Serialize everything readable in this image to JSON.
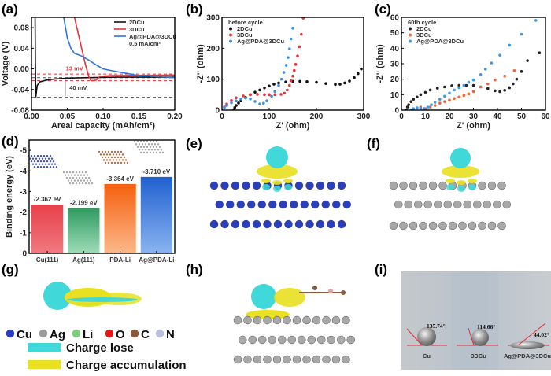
{
  "panel_labels": {
    "a": "(a)",
    "b": "(b)",
    "c": "(c)",
    "d": "(d)",
    "e": "(e)",
    "f": "(f)",
    "g": "(g)",
    "h": "(h)",
    "i": "(i)"
  },
  "chart_data": [
    {
      "id": "a",
      "type": "line",
      "xlabel": "Areal capacity (mAh/cm²)",
      "ylabel": "Voltage (V)",
      "xlim": [
        0,
        0.2
      ],
      "ylim": [
        -0.08,
        0.1
      ],
      "xticks": [
        "0.00",
        "0.05",
        "0.10",
        "0.15",
        "0.20"
      ],
      "xtick_values": [
        0,
        0.05,
        0.1,
        0.15,
        0.2
      ],
      "yticks": [
        "-0.08",
        "-0.04",
        "0.00",
        "0.04",
        "0.08"
      ],
      "ytick_values": [
        -0.08,
        -0.04,
        0,
        0.04,
        0.08
      ],
      "legend_note": "0.5 mA/cm²",
      "series": [
        {
          "name": "2DCu",
          "color": "#111111",
          "points": [
            [
              0.005,
              0.1
            ],
            [
              0.0055,
              0.0
            ],
            [
              0.006,
              -0.055
            ],
            [
              0.008,
              -0.032
            ],
            [
              0.012,
              -0.025
            ],
            [
              0.02,
              -0.022
            ],
            [
              0.03,
              -0.02
            ],
            [
              0.05,
              -0.018
            ],
            [
              0.08,
              -0.017
            ],
            [
              0.12,
              -0.016
            ],
            [
              0.2,
              -0.016
            ]
          ]
        },
        {
          "name": "3DCu",
          "color": "#e8333a",
          "points": [
            [
              0.06,
              0.1
            ],
            [
              0.065,
              0.07
            ],
            [
              0.07,
              0.04
            ],
            [
              0.075,
              0.01
            ],
            [
              0.08,
              -0.015
            ],
            [
              0.083,
              -0.023
            ],
            [
              0.09,
              -0.022
            ],
            [
              0.095,
              -0.015
            ],
            [
              0.11,
              -0.013
            ],
            [
              0.2,
              -0.012
            ]
          ]
        },
        {
          "name": "Ag@PDA@3DCu",
          "color": "#2f73d9",
          "points": [
            [
              0.045,
              0.1
            ],
            [
              0.05,
              0.06
            ],
            [
              0.055,
              0.04
            ],
            [
              0.06,
              0.03
            ],
            [
              0.07,
              0.025
            ],
            [
              0.08,
              0.017
            ],
            [
              0.09,
              0.008
            ],
            [
              0.1,
              0.0
            ],
            [
              0.11,
              -0.003
            ],
            [
              0.13,
              -0.008
            ],
            [
              0.15,
              -0.013
            ],
            [
              0.2,
              -0.017
            ]
          ]
        }
      ],
      "reference_lines": [
        {
          "y": -0.01,
          "color": "#e8333a"
        },
        {
          "y": -0.023,
          "color": "#e8333a"
        },
        {
          "y": -0.017,
          "color": "#555555"
        },
        {
          "y": -0.055,
          "color": "#555555"
        }
      ],
      "annotations": [
        {
          "text": "13 mV",
          "color": "#e8333a"
        },
        {
          "text": "40 mV",
          "color": "#222222"
        }
      ]
    },
    {
      "id": "b",
      "type": "scatter",
      "legend_title": "before cycle",
      "xlabel": "Z' (ohm)",
      "ylabel": "-Z'' (ohm)",
      "xlim": [
        0,
        300
      ],
      "ylim": [
        0,
        300
      ],
      "xticks": [
        "0",
        "100",
        "200",
        "300"
      ],
      "xtick_values": [
        0,
        100,
        200,
        300
      ],
      "yticks": [
        "0",
        "100",
        "200",
        "300"
      ],
      "ytick_values": [
        0,
        100,
        200,
        300
      ],
      "series": [
        {
          "name": "2DCu",
          "color": "#111111",
          "points": [
            [
              25,
              0
            ],
            [
              27,
              8
            ],
            [
              30,
              15
            ],
            [
              35,
              23
            ],
            [
              40,
              30
            ],
            [
              50,
              41
            ],
            [
              60,
              50
            ],
            [
              70,
              58
            ],
            [
              80,
              65
            ],
            [
              90,
              72
            ],
            [
              100,
              78
            ],
            [
              110,
              84
            ],
            [
              120,
              88
            ],
            [
              135,
              91
            ],
            [
              150,
              93
            ],
            [
              165,
              93
            ],
            [
              180,
              92
            ],
            [
              200,
              90
            ],
            [
              220,
              86
            ],
            [
              240,
              83
            ],
            [
              250,
              84
            ],
            [
              260,
              88
            ],
            [
              270,
              94
            ],
            [
              280,
              105
            ],
            [
              288,
              118
            ],
            [
              295,
              133
            ]
          ]
        },
        {
          "name": "3DCu",
          "color": "#e8333a",
          "points": [
            [
              0,
              0
            ],
            [
              5,
              10
            ],
            [
              10,
              20
            ],
            [
              20,
              31
            ],
            [
              30,
              40
            ],
            [
              45,
              46
            ],
            [
              60,
              50
            ],
            [
              75,
              51
            ],
            [
              90,
              50
            ],
            [
              100,
              50
            ],
            [
              112,
              50
            ],
            [
              125,
              51
            ],
            [
              132,
              55
            ],
            [
              138,
              65
            ],
            [
              143,
              80
            ],
            [
              146,
              95
            ],
            [
              150,
              110
            ],
            [
              153,
              128
            ],
            [
              156,
              148
            ],
            [
              160,
              175
            ],
            [
              164,
              205
            ],
            [
              168,
              245
            ],
            [
              172,
              297
            ]
          ]
        },
        {
          "name": "Ag@PDA@3DCu",
          "color": "#3d8fe0",
          "points": [
            [
              0,
              0
            ],
            [
              5,
              8
            ],
            [
              10,
              15
            ],
            [
              20,
              24
            ],
            [
              30,
              30
            ],
            [
              40,
              36
            ],
            [
              50,
              39
            ],
            [
              60,
              36
            ],
            [
              70,
              28
            ],
            [
              80,
              20
            ],
            [
              88,
              22
            ],
            [
              95,
              30
            ],
            [
              105,
              45
            ],
            [
              112,
              60
            ],
            [
              120,
              80
            ],
            [
              126,
              100
            ],
            [
              131,
              122
            ],
            [
              136,
              145
            ],
            [
              140,
              170
            ],
            [
              143,
              198
            ],
            [
              146,
              230
            ],
            [
              150,
              265
            ]
          ]
        }
      ]
    },
    {
      "id": "c",
      "type": "scatter",
      "legend_title": "60th cycle",
      "xlabel": "Z' (ohm)",
      "ylabel": "-Z'' (ohm)",
      "xlim": [
        0,
        60
      ],
      "ylim": [
        0,
        60
      ],
      "xticks": [
        "0",
        "10",
        "20",
        "30",
        "40",
        "50",
        "60"
      ],
      "xtick_values": [
        0,
        10,
        20,
        30,
        40,
        50,
        60
      ],
      "yticks": [
        "0",
        "10",
        "20",
        "30",
        "40",
        "50",
        "60"
      ],
      "ytick_values": [
        0,
        10,
        20,
        30,
        40,
        50,
        60
      ],
      "series": [
        {
          "name": "2DCu",
          "color": "#222222",
          "points": [
            [
              2,
              0
            ],
            [
              2.5,
              2
            ],
            [
              3,
              3.5
            ],
            [
              4,
              5.5
            ],
            [
              5,
              7
            ],
            [
              6.5,
              8.5
            ],
            [
              8,
              10
            ],
            [
              10,
              11.5
            ],
            [
              12,
              13
            ],
            [
              15,
              14.2
            ],
            [
              18,
              15
            ],
            [
              21,
              15.8
            ],
            [
              24,
              16
            ],
            [
              27,
              16
            ],
            [
              30,
              16
            ],
            [
              33,
              15
            ],
            [
              36,
              14
            ],
            [
              39,
              12.5
            ],
            [
              41,
              12
            ],
            [
              43,
              12.8
            ],
            [
              45,
              14.5
            ],
            [
              46.5,
              17
            ],
            [
              48,
              20
            ],
            [
              50,
              25
            ],
            [
              52.5,
              32
            ],
            [
              57.5,
              37
            ]
          ]
        },
        {
          "name": "3DCu",
          "color": "#f0643c",
          "points": [
            [
              5,
              0
            ],
            [
              6.5,
              1.5
            ],
            [
              8,
              2
            ],
            [
              10,
              1
            ],
            [
              12,
              2
            ],
            [
              14,
              3
            ],
            [
              16,
              4.5
            ],
            [
              18,
              5.5
            ],
            [
              20,
              6.5
            ],
            [
              22,
              7.5
            ],
            [
              24,
              8.5
            ],
            [
              26,
              9.5
            ],
            [
              28,
              10.5
            ],
            [
              30,
              12
            ],
            [
              33,
              15
            ],
            [
              36,
              17
            ],
            [
              39,
              19.5
            ],
            [
              43,
              22
            ],
            [
              47,
              25.5
            ]
          ]
        },
        {
          "name": "Ag@PDA@3DCu",
          "color": "#3d9be8",
          "points": [
            [
              4,
              0
            ],
            [
              5,
              1
            ],
            [
              6.5,
              1.5
            ],
            [
              8,
              1.2
            ],
            [
              9.5,
              1
            ],
            [
              11,
              2
            ],
            [
              12.5,
              3.5
            ],
            [
              14,
              5
            ],
            [
              16,
              7
            ],
            [
              18,
              9
            ],
            [
              20,
              11
            ],
            [
              22,
              13
            ],
            [
              24,
              14.5
            ],
            [
              26,
              16
            ],
            [
              28,
              18
            ],
            [
              30,
              19.5
            ],
            [
              33,
              23
            ],
            [
              35,
              26.5
            ],
            [
              37.5,
              30.5
            ],
            [
              41,
              35.5
            ],
            [
              45,
              42
            ],
            [
              50,
              49
            ],
            [
              56,
              58
            ]
          ]
        }
      ]
    },
    {
      "id": "d",
      "type": "bar",
      "ylabel": "Binding energy (eV)",
      "ylim": [
        0,
        -5.5
      ],
      "yticks": [
        "0",
        "-1",
        "-2",
        "-3",
        "-4",
        "-5"
      ],
      "ytick_values": [
        0,
        -1,
        -2,
        -3,
        -4,
        -5
      ],
      "categories": [
        "Cu(111)",
        "Ag(111)",
        "PDA-Li",
        "Ag@PDA-Li"
      ],
      "values": [
        -2.362,
        -2.199,
        -3.364,
        -3.71
      ],
      "data_labels": [
        "-2.362 eV",
        "-2.199 eV",
        "-3.364 eV",
        "-3.710 eV"
      ],
      "colors": [
        "#e8404a",
        "#3aa86a",
        "#f56a1a",
        "#2f6fd6"
      ]
    }
  ],
  "legend_g": {
    "atoms": [
      {
        "label": "Cu",
        "color": "#2a3fc0"
      },
      {
        "label": "Ag",
        "color": "#9a9a9a"
      },
      {
        "label": "Li",
        "color": "#7ccf7c"
      },
      {
        "label": "O",
        "color": "#e01818"
      },
      {
        "label": "C",
        "color": "#8a5a3a"
      },
      {
        "label": "N",
        "color": "#b8c0e0"
      }
    ],
    "charge_lose": {
      "label": "Charge lose",
      "color": "#40d8d8"
    },
    "charge_accumulation": {
      "label": "Charge accumulation",
      "color": "#e8e020"
    }
  },
  "contact_angle": {
    "samples": [
      {
        "label": "Cu",
        "angle": "135.74°"
      },
      {
        "label": "3DCu",
        "angle": "114.66°"
      },
      {
        "label": "Ag@PDA@3DCu",
        "angle": "44.02°"
      }
    ]
  }
}
